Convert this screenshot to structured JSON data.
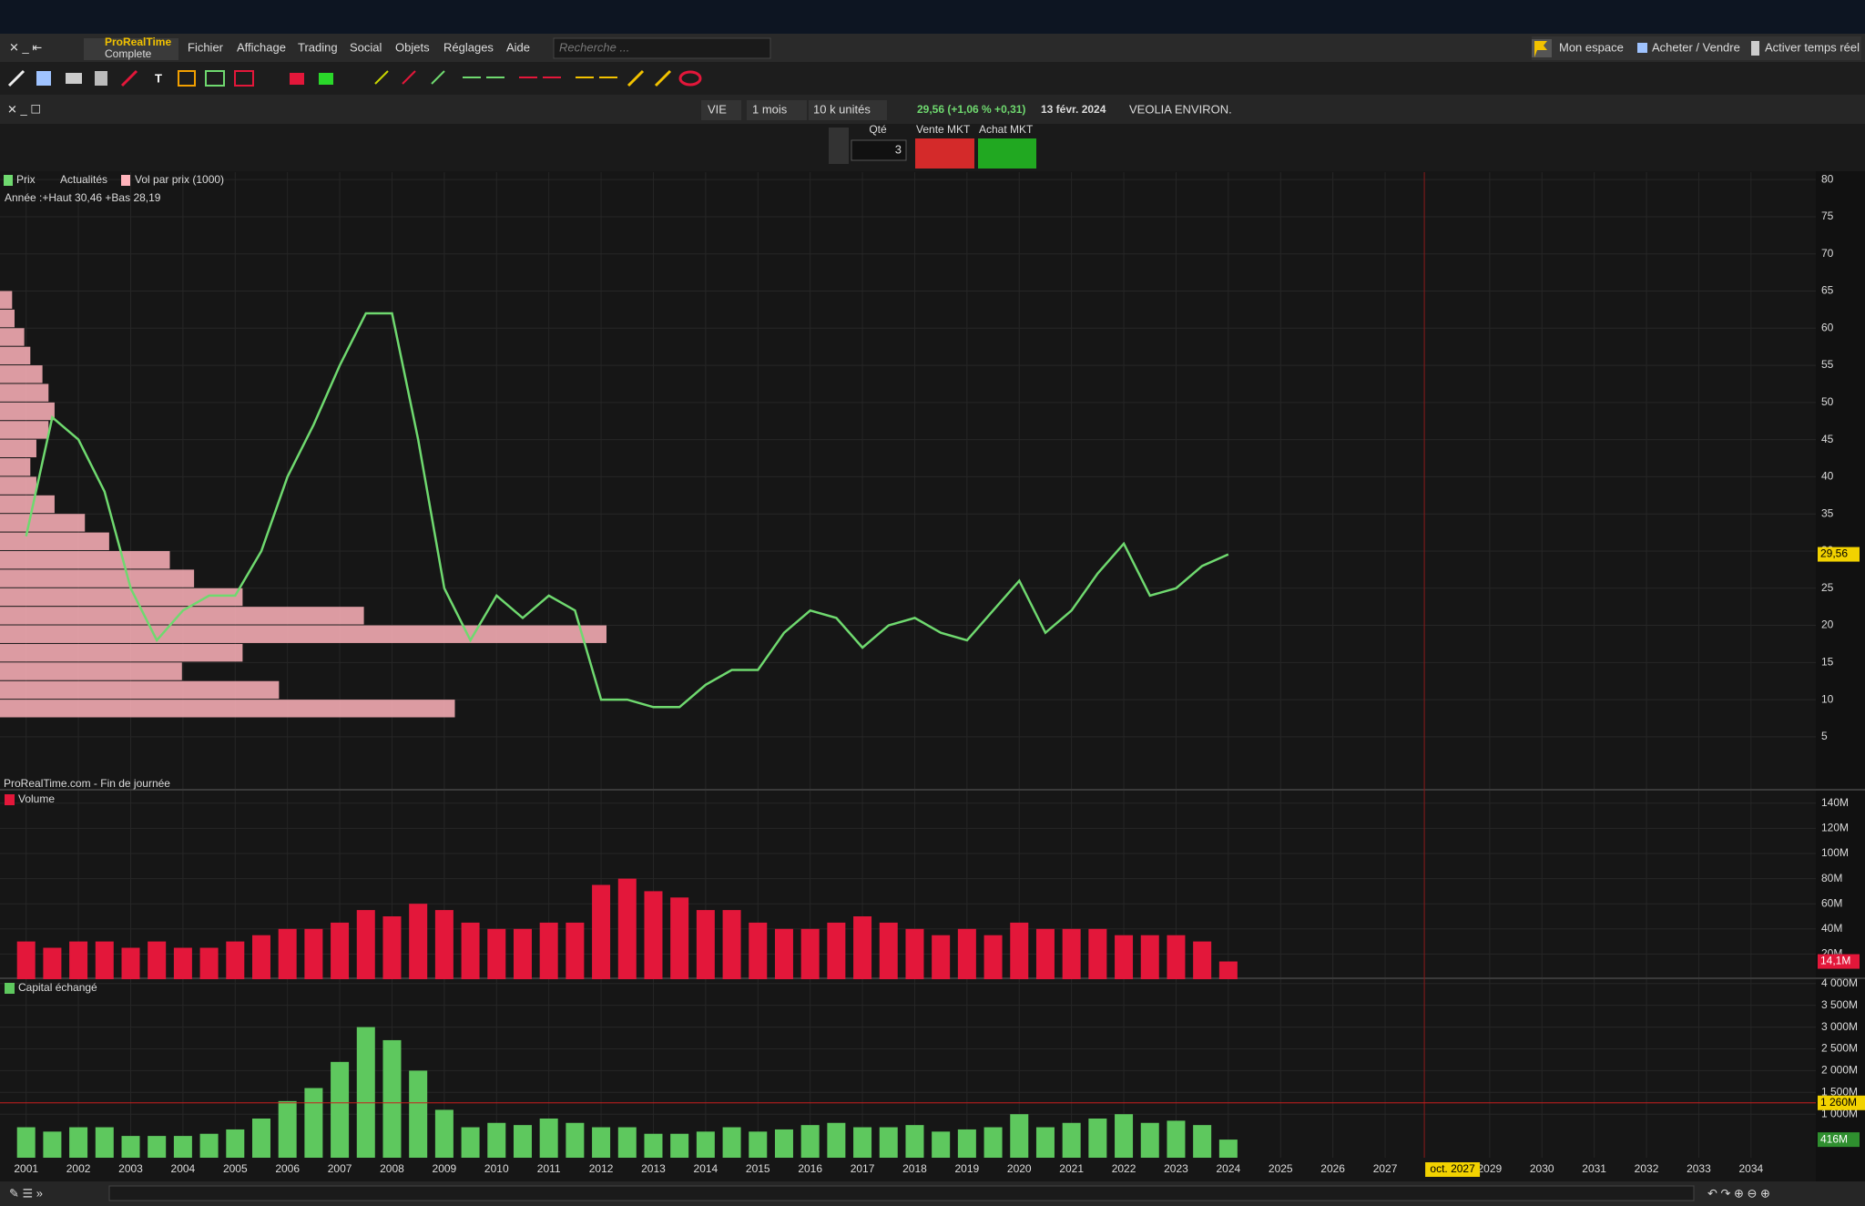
{
  "menu": {
    "brand": "ProRealTime",
    "edition": "Complete",
    "items": [
      "Fichier",
      "Affichage",
      "Trading",
      "Social",
      "Objets",
      "Réglages",
      "Aide"
    ],
    "search": "Recherche ...",
    "right": [
      "Mon espace",
      "Acheter / Vendre",
      "Activer temps réel"
    ]
  },
  "header": {
    "symbol": "VIE",
    "period": "1 mois",
    "units": "10 k unités",
    "quote": "29,56 (+1,06 % +0,31)",
    "date": "13 févr. 2024",
    "name": "VEOLIA ENVIRON."
  },
  "order": {
    "qty_label": "Qté",
    "qty": 3,
    "sell": "Vente MKT",
    "buy": "Achat MKT"
  },
  "chart_data": [
    {
      "type": "line",
      "source": "ProRealTime.com - Fin de journée",
      "annotation": "Année :+Haut 30,46 +Bas 28,19",
      "indicators": [
        "Actualités",
        "Vol par prix (1000)"
      ],
      "x": [
        2001,
        2001.5,
        2002,
        2002.5,
        2003,
        2003.5,
        2004,
        2004.5,
        2005,
        2005.5,
        2006,
        2006.5,
        2007,
        2007.5,
        2008,
        2008.5,
        2009,
        2009.5,
        2010,
        2010.5,
        2011,
        2011.5,
        2012,
        2012.5,
        2013,
        2013.5,
        2014,
        2014.5,
        2015,
        2015.5,
        2016,
        2016.5,
        2017,
        2017.5,
        2018,
        2018.5,
        2019,
        2019.5,
        2020,
        2020.5,
        2021,
        2021.5,
        2022,
        2022.5,
        2023,
        2023.5,
        2024
      ],
      "series": [
        {
          "name": "Prix",
          "color": "#6fd96f",
          "values": [
            32,
            48,
            45,
            38,
            25,
            18,
            22,
            24,
            24,
            30,
            40,
            47,
            55,
            62,
            62,
            45,
            25,
            18,
            24,
            21,
            24,
            22,
            10,
            10,
            9,
            9,
            12,
            14,
            14,
            19,
            22,
            21,
            17,
            20,
            21,
            19,
            18,
            22,
            26,
            19,
            22,
            27,
            31,
            24,
            25,
            28,
            29.56
          ]
        }
      ],
      "profile": {
        "color": "#ffb3bb",
        "prices": [
          8.75,
          11.25,
          13.75,
          16.25,
          18.75,
          21.25,
          23.75,
          26.25,
          28.75,
          31.25,
          33.75,
          36.25,
          38.75,
          41.25,
          43.75,
          46.25,
          48.75,
          51.25,
          53.75,
          56.25,
          58.75,
          61.25,
          63.75
        ],
        "values": [
          375,
          230,
          150,
          200,
          500,
          300,
          200,
          160,
          140,
          90,
          70,
          45,
          30,
          25,
          30,
          40,
          45,
          40,
          35,
          25,
          20,
          12,
          10
        ]
      },
      "last_value": {
        "value": 29.56,
        "label": "29,56"
      },
      "xlim": [
        2000.5,
        2035.24
      ],
      "xticks": [
        2001,
        2002,
        2003,
        2004,
        2005,
        2006,
        2007,
        2008,
        2009,
        2010,
        2011,
        2012,
        2013,
        2014,
        2015,
        2016,
        2017,
        2018,
        2019,
        2020,
        2021,
        2022,
        2023,
        2024,
        2025,
        2026,
        2027,
        2029,
        2030,
        2031,
        2032,
        2033,
        2034
      ],
      "cursor": {
        "value": 2027.75,
        "label": "oct. 2027"
      },
      "ylim": [
        -2,
        81
      ],
      "yticks": [
        5,
        10,
        15,
        20,
        25,
        30,
        35,
        40,
        45,
        50,
        55,
        60,
        65,
        70,
        75,
        80
      ],
      "grid": true
    },
    {
      "type": "bar",
      "series": [
        {
          "name": "Volume",
          "color": "#e3173a",
          "values": [
            30000000,
            25000000,
            30000000,
            30000000,
            25000000,
            30000000,
            25000000,
            25000000,
            30000000,
            35000000,
            40000000,
            40000000,
            45000000,
            55000000,
            50000000,
            60000000,
            55000000,
            45000000,
            40000000,
            40000000,
            45000000,
            45000000,
            75000000,
            80000000,
            70000000,
            65000000,
            55000000,
            55000000,
            45000000,
            40000000,
            40000000,
            45000000,
            50000000,
            45000000,
            40000000,
            35000000,
            40000000,
            35000000,
            45000000,
            40000000,
            40000000,
            40000000,
            35000000,
            35000000,
            35000000,
            30000000,
            14100000
          ]
        }
      ],
      "last_value": {
        "value": 14100000,
        "label": "14,1M"
      },
      "ylim": [
        0,
        150000000
      ],
      "yticks": [
        {
          "value": 20000000,
          "label": "20M"
        },
        {
          "value": 40000000,
          "label": "40M"
        },
        {
          "value": 60000000,
          "label": "60M"
        },
        {
          "value": 80000000,
          "label": "80M"
        },
        {
          "value": 100000000,
          "label": "100M"
        },
        {
          "value": 120000000,
          "label": "120M"
        },
        {
          "value": 140000000,
          "label": "140M"
        }
      ],
      "grid": true
    },
    {
      "type": "bar",
      "series": [
        {
          "name": "Capital échangé",
          "color": "#5ec85e",
          "values": [
            700000000,
            600000000,
            700000000,
            700000000,
            500000000,
            500000000,
            500000000,
            550000000,
            650000000,
            900000000,
            1300000000,
            1600000000,
            2200000000,
            3000000000,
            2700000000,
            2000000000,
            1100000000,
            700000000,
            800000000,
            750000000,
            900000000,
            800000000,
            700000000,
            700000000,
            550000000,
            550000000,
            600000000,
            700000000,
            600000000,
            650000000,
            750000000,
            800000000,
            700000000,
            700000000,
            750000000,
            600000000,
            650000000,
            700000000,
            1000000000,
            700000000,
            800000000,
            900000000,
            1000000000,
            800000000,
            850000000,
            750000000,
            416000000
          ]
        }
      ],
      "last_value": {
        "value": 416000000,
        "label": "416M"
      },
      "reference": {
        "value": 1260000000,
        "label": "1 260M"
      },
      "ylim": [
        0,
        4100000000
      ],
      "yticks": [
        {
          "value": 1000000000,
          "label": "1 000M"
        },
        {
          "value": 1500000000,
          "label": "1 500M"
        },
        {
          "value": 2000000000,
          "label": "2 000M"
        },
        {
          "value": 2500000000,
          "label": "2 500M"
        },
        {
          "value": 3000000000,
          "label": "3 000M"
        },
        {
          "value": 3500000000,
          "label": "3 500M"
        },
        {
          "value": 4000000000,
          "label": "4 000M"
        }
      ],
      "grid": true
    }
  ]
}
